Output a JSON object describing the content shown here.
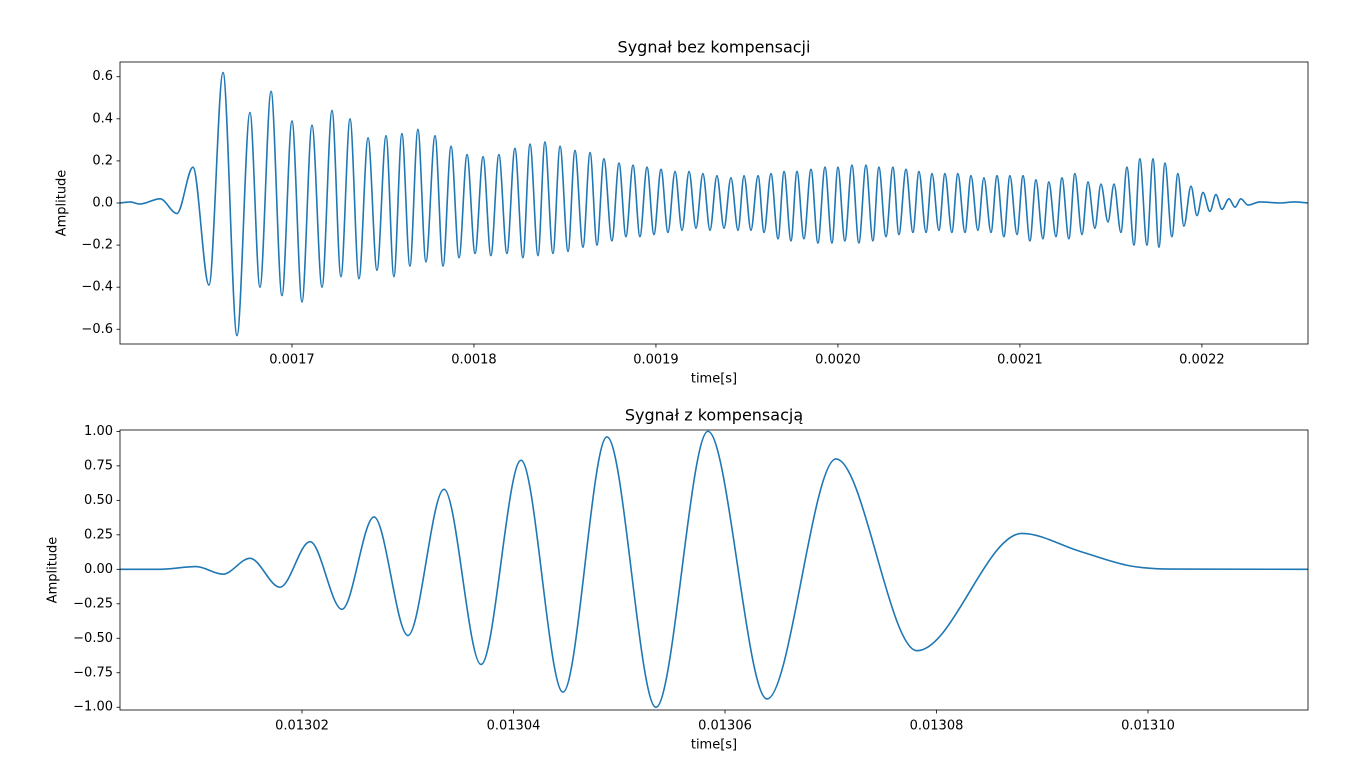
{
  "chart_data": [
    {
      "type": "line",
      "title": "Sygnał bez kompensacji",
      "xlabel": "time[s]",
      "ylabel": "Amplitude",
      "color": "#1f77b4",
      "x": [
        0.0016055,
        0.001611,
        0.0016165,
        0.0016275,
        0.0016368,
        0.0016456,
        0.0016544,
        0.0016621,
        0.0016698,
        0.0016769,
        0.0016824,
        0.0016885,
        0.0016945,
        0.0017,
        0.0017055,
        0.001711,
        0.0017165,
        0.001722,
        0.0017269,
        0.0017319,
        0.0017368,
        0.0017418,
        0.0017467,
        0.0017517,
        0.001756,
        0.0017604,
        0.0017648,
        0.0017692,
        0.0017736,
        0.0017786,
        0.001783,
        0.0017874,
        0.0017918,
        0.0017962,
        0.0018006,
        0.001805,
        0.0018093,
        0.0018137,
        0.0018181,
        0.0018225,
        0.0018269,
        0.0018308,
        0.0018352,
        0.001839,
        0.0018434,
        0.0018473,
        0.0018517,
        0.0018555,
        0.0018599,
        0.0018638,
        0.0018676,
        0.0018714,
        0.0018758,
        0.0018797,
        0.0018835,
        0.0018874,
        0.0018912,
        0.0018951,
        0.0018989,
        0.0019028,
        0.0019066,
        0.0019105,
        0.0019143,
        0.0019182,
        0.001922,
        0.0019258,
        0.0019297,
        0.0019335,
        0.0019374,
        0.0019412,
        0.0019451,
        0.0019484,
        0.0019522,
        0.0019561,
        0.0019594,
        0.0019632,
        0.0019671,
        0.0019704,
        0.0019742,
        0.0019775,
        0.0019813,
        0.0019852,
        0.001989,
        0.0019929,
        0.0019967,
        0.002,
        0.0020038,
        0.0020077,
        0.0020115,
        0.0020154,
        0.0020192,
        0.0020225,
        0.0020264,
        0.0020302,
        0.0020335,
        0.0020374,
        0.0020412,
        0.0020445,
        0.0020484,
        0.0020517,
        0.0020555,
        0.0020588,
        0.0020626,
        0.0020659,
        0.0020698,
        0.0020731,
        0.0020769,
        0.0020802,
        0.0020841,
        0.0020874,
        0.0020912,
        0.0020945,
        0.0020984,
        0.0021017,
        0.0021055,
        0.0021088,
        0.0021126,
        0.0021159,
        0.0021198,
        0.0021231,
        0.0021269,
        0.0021302,
        0.0021341,
        0.0021374,
        0.0021412,
        0.0021445,
        0.0021484,
        0.0021517,
        0.0021555,
        0.0021588,
        0.0021627,
        0.0021659,
        0.0021698,
        0.0021731,
        0.0021764,
        0.0021797,
        0.0021835,
        0.0021868,
        0.0021901,
        0.002194,
        0.0021973,
        0.0022006,
        0.0022044,
        0.0022077,
        0.002211,
        0.0022149,
        0.0022182,
        0.0022214,
        0.0022253,
        0.0022319,
        0.0022429,
        0.0022511,
        0.0022583
      ],
      "values": [
        0,
        0.005,
        -0.005,
        0.02,
        -0.05,
        0.17,
        -0.39,
        0.62,
        -0.63,
        0.43,
        -0.4,
        0.53,
        -0.44,
        0.39,
        -0.47,
        0.37,
        -0.4,
        0.44,
        -0.35,
        0.4,
        -0.36,
        0.31,
        -0.32,
        0.32,
        -0.35,
        0.33,
        -0.3,
        0.35,
        -0.28,
        0.32,
        -0.3,
        0.27,
        -0.26,
        0.23,
        -0.24,
        0.22,
        -0.25,
        0.23,
        -0.24,
        0.26,
        -0.26,
        0.28,
        -0.25,
        0.29,
        -0.24,
        0.27,
        -0.23,
        0.25,
        -0.21,
        0.24,
        -0.2,
        0.21,
        -0.18,
        0.19,
        -0.16,
        0.18,
        -0.16,
        0.17,
        -0.15,
        0.16,
        -0.14,
        0.15,
        -0.13,
        0.15,
        -0.12,
        0.14,
        -0.13,
        0.13,
        -0.12,
        0.12,
        -0.13,
        0.13,
        -0.13,
        0.13,
        -0.14,
        0.14,
        -0.17,
        0.15,
        -0.18,
        0.15,
        -0.17,
        0.16,
        -0.19,
        0.17,
        -0.19,
        0.17,
        -0.18,
        0.18,
        -0.19,
        0.18,
        -0.18,
        0.17,
        -0.16,
        0.17,
        -0.15,
        0.16,
        -0.14,
        0.15,
        -0.14,
        0.14,
        -0.13,
        0.14,
        -0.14,
        0.14,
        -0.14,
        0.13,
        -0.13,
        0.12,
        -0.14,
        0.13,
        -0.16,
        0.13,
        -0.15,
        0.13,
        -0.18,
        0.11,
        -0.17,
        0.1,
        -0.16,
        0.12,
        -0.17,
        0.14,
        -0.15,
        0.1,
        -0.12,
        0.09,
        -0.09,
        0.09,
        -0.14,
        0.17,
        -0.2,
        0.21,
        -0.2,
        0.21,
        -0.21,
        0.19,
        -0.16,
        0.14,
        -0.11,
        0.08,
        -0.06,
        0.05,
        -0.04,
        0.04,
        -0.03,
        0.02,
        -0.02,
        0.02,
        -0.01,
        0.005,
        0,
        0.005,
        0
      ],
      "xlim": [
        0.0016055,
        0.0022583
      ],
      "ylim": [
        -0.67,
        0.67
      ],
      "xticks": [
        0.0017,
        0.0018,
        0.0019,
        {
          "value": 0.002,
          "label": "0.0020"
        },
        0.0021,
        0.0022
      ],
      "yticks": [
        {
          "value": -0.6,
          "label": "−0.6"
        },
        {
          "value": -0.4,
          "label": "−0.4"
        },
        {
          "value": -0.2,
          "label": "−0.2"
        },
        {
          "value": 0,
          "label": "0.0"
        },
        0.2,
        0.4,
        0.6
      ]
    },
    {
      "type": "line",
      "title": "Sygnał z kompensacją",
      "xlabel": "time[s]",
      "ylabel": "Amplitude",
      "color": "#1f77b4",
      "x": [
        0.01300279,
        0.01300657,
        0.01300998,
        0.01301253,
        0.01301508,
        0.01301792,
        0.01302076,
        0.01302378,
        0.01302681,
        0.01303002,
        0.01303343,
        0.01303693,
        0.01304071,
        0.01304468,
        0.01304884,
        0.01305347,
        0.01305839,
        0.01306397,
        0.0130705,
        0.01307815,
        0.01308808,
        0.01309357,
        0.0130983,
        0.01310208,
        0.01311513
      ],
      "values": [
        0,
        0,
        0.02,
        -0.035,
        0.08,
        -0.13,
        0.2,
        -0.29,
        0.38,
        -0.48,
        0.58,
        -0.69,
        0.79,
        -0.89,
        0.96,
        -1.0,
        1.0,
        -0.94,
        0.8,
        -0.59,
        0.26,
        0.13,
        0.025,
        0.002,
        0
      ],
      "xlim": [
        0.01300279,
        0.01311513
      ],
      "ylim": [
        -1.02,
        1.01
      ],
      "xticks": [
        0.01302,
        0.01304,
        0.01306,
        0.01308,
        {
          "value": 0.0131,
          "label": "0.01310"
        }
      ],
      "yticks": [
        {
          "value": -1,
          "label": "−1.00"
        },
        {
          "value": -0.75,
          "label": "−0.75"
        },
        {
          "value": -0.5,
          "label": "−0.50"
        },
        {
          "value": -0.25,
          "label": "−0.25"
        },
        {
          "value": 0,
          "label": "0.00"
        },
        {
          "value": 0.25,
          "label": "0.25"
        },
        {
          "value": 0.5,
          "label": "0.50"
        },
        {
          "value": 0.75,
          "label": "0.75"
        },
        {
          "value": 1,
          "label": "1.00"
        }
      ]
    }
  ]
}
